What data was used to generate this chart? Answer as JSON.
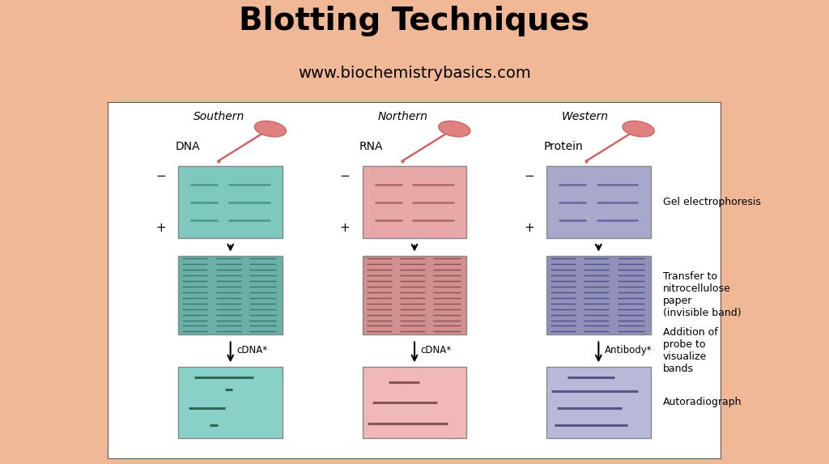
{
  "title": "Blotting Techniques",
  "subtitle": "www.biochemistrybasics.com",
  "header_bg": "#f0b896",
  "diagram_bg": "#ffffff",
  "columns": [
    "Southern",
    "Northern",
    "Western"
  ],
  "sample_labels": [
    "DNA",
    "RNA",
    "Protein"
  ],
  "gel_colors": [
    "#7ec8bf",
    "#e8a8a8",
    "#a8a8cc"
  ],
  "nitro_colors": [
    "#6ab0a8",
    "#d09090",
    "#9090b8"
  ],
  "auto_colors": [
    "#88d0c8",
    "#f0b8b8",
    "#b8b8d8"
  ],
  "gel_line_colors": [
    "#4a9890",
    "#b06868",
    "#6868a0"
  ],
  "nitro_line_colors": [
    "#3a7870",
    "#905050",
    "#505090"
  ],
  "auto_band_colors": [
    "#336655",
    "#885555",
    "#555588"
  ],
  "arrow_labels": [
    "cDNA*",
    "cDNA*",
    "Antibody*"
  ],
  "label_gel": "Gel electrophoresis",
  "label_nitro": "Transfer to\nnitrocellulose\npaper\n(invisible band)",
  "label_probe": "Addition of\nprobe to\nvisualize\nbands",
  "label_auto": "Autoradiograph"
}
